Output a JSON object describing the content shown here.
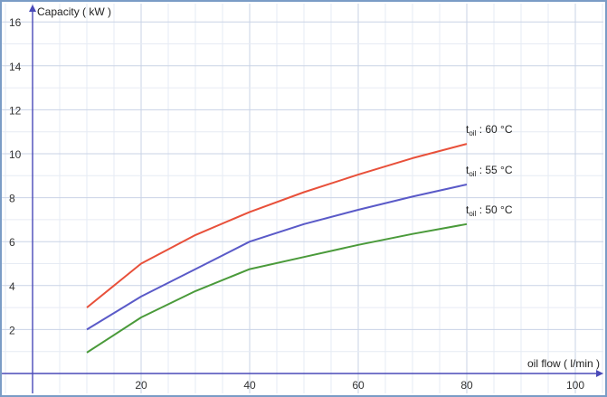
{
  "chart_data": {
    "type": "line",
    "ylabel": "Capacity ( kW )",
    "xlabel": "oil flow ( l/min )",
    "xlim": [
      0,
      105
    ],
    "ylim": [
      0,
      16.5
    ],
    "xticks": [
      20,
      40,
      60,
      80,
      100
    ],
    "yticks": [
      2,
      4,
      6,
      8,
      10,
      12,
      14,
      16
    ],
    "grid": true,
    "series": [
      {
        "name_main": "t",
        "name_sub": "oil",
        "name_rest": " : 60 °C",
        "color": "#e8503a",
        "x": [
          10,
          20,
          30,
          40,
          50,
          60,
          70,
          80
        ],
        "y": [
          3.0,
          5.0,
          6.3,
          7.35,
          8.25,
          9.05,
          9.8,
          10.45
        ]
      },
      {
        "name_main": "t",
        "name_sub": "oil",
        "name_rest": " : 55 °C",
        "color": "#5a5ac8",
        "x": [
          10,
          20,
          30,
          40,
          50,
          60,
          70,
          80
        ],
        "y": [
          2.0,
          3.5,
          4.75,
          6.0,
          6.8,
          7.45,
          8.05,
          8.6
        ]
      },
      {
        "name_main": "t",
        "name_sub": "oil",
        "name_rest": " : 50 °C",
        "color": "#4a9a3a",
        "x": [
          10,
          20,
          30,
          40,
          50,
          60,
          70,
          80
        ],
        "y": [
          0.95,
          2.55,
          3.75,
          4.75,
          5.3,
          5.85,
          6.35,
          6.8
        ]
      }
    ]
  }
}
